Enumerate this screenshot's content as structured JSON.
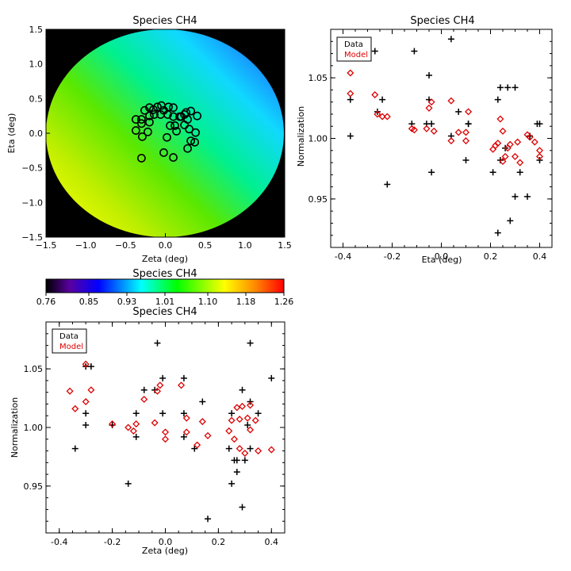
{
  "chart_data": [
    {
      "id": "map",
      "type": "heatmap",
      "title": "Species CH4",
      "xlabel": "Zeta (deg)",
      "ylabel": "Eta (deg)",
      "xlim": [
        -1.5,
        1.5
      ],
      "ylim": [
        -1.5,
        1.5
      ],
      "xticks": [
        -1.5,
        -1.0,
        -0.5,
        0.0,
        0.5,
        1.0,
        1.5
      ],
      "yticks": [
        -1.5,
        -1.0,
        -0.5,
        0.0,
        0.5,
        1.0,
        1.5
      ],
      "xtick_labels": [
        "−1.5",
        "−1.0",
        "−0.5",
        "0.0",
        "0.5",
        "1.0",
        "1.5"
      ],
      "ytick_labels": [
        "−1.5",
        "−1.0",
        "−0.5",
        "0.0",
        "0.5",
        "1.0",
        "1.5"
      ],
      "field_value_range": [
        0.85,
        1.18
      ],
      "points": [
        [
          -0.26,
          0.33
        ],
        [
          -0.2,
          0.37
        ],
        [
          -0.15,
          0.34
        ],
        [
          -0.1,
          0.38
        ],
        [
          -0.05,
          0.4
        ],
        [
          -0.02,
          0.33
        ],
        [
          0.04,
          0.38
        ],
        [
          0.1,
          0.37
        ],
        [
          0.26,
          0.3
        ],
        [
          0.32,
          0.32
        ],
        [
          -0.37,
          0.2
        ],
        [
          -0.3,
          0.2
        ],
        [
          -0.2,
          0.25
        ],
        [
          -0.14,
          0.27
        ],
        [
          -0.06,
          0.27
        ],
        [
          0.03,
          0.27
        ],
        [
          0.1,
          0.24
        ],
        [
          0.18,
          0.24
        ],
        [
          0.28,
          0.2
        ],
        [
          0.4,
          0.25
        ],
        [
          -0.3,
          0.14
        ],
        [
          -0.2,
          0.16
        ],
        [
          0.06,
          0.11
        ],
        [
          0.12,
          0.11
        ],
        [
          0.24,
          0.12
        ],
        [
          -0.37,
          0.04
        ],
        [
          -0.22,
          0.02
        ],
        [
          0.14,
          0.03
        ],
        [
          0.3,
          0.06
        ],
        [
          0.38,
          0.01
        ],
        [
          -0.29,
          -0.05
        ],
        [
          0.02,
          -0.06
        ],
        [
          0.32,
          -0.11
        ],
        [
          0.37,
          -0.13
        ],
        [
          0.28,
          -0.22
        ],
        [
          -0.02,
          -0.28
        ],
        [
          0.1,
          -0.35
        ],
        [
          -0.3,
          -0.36
        ],
        [
          0.24,
          0.27
        ],
        [
          0.2,
          0.24
        ]
      ]
    },
    {
      "id": "colorbar",
      "type": "heatmap",
      "title": "Species CH4",
      "vmin": 0.76,
      "vmax": 1.26,
      "ticks": [
        0.76,
        0.85,
        0.93,
        1.01,
        1.1,
        1.18,
        1.26
      ],
      "tick_labels": [
        "0.76",
        "0.85",
        "0.93",
        "1.01",
        "1.10",
        "1.18",
        "1.26"
      ]
    },
    {
      "id": "eta_plot",
      "type": "scatter",
      "title": "Species CH4",
      "xlabel": "Eta (deg)",
      "ylabel": "Normalization",
      "xlim": [
        -0.45,
        0.45
      ],
      "ylim": [
        0.91,
        1.09
      ],
      "xticks": [
        -0.4,
        -0.2,
        0.0,
        0.2,
        0.4
      ],
      "yticks": [
        0.95,
        1.0,
        1.05
      ],
      "xtick_labels": [
        "-0.4",
        "-0.2",
        "0.0",
        "0.2",
        "0.4"
      ],
      "ytick_labels": [
        "0.95",
        "1.00",
        "1.05"
      ],
      "legend": {
        "placement": "top-left",
        "entries": [
          "Data",
          "Model"
        ]
      },
      "series": [
        {
          "name": "Data",
          "marker": "plus",
          "color": "#000000",
          "points": [
            [
              -0.37,
              1.032
            ],
            [
              -0.37,
              1.002
            ],
            [
              -0.27,
              1.072
            ],
            [
              -0.26,
              1.022
            ],
            [
              -0.24,
              1.032
            ],
            [
              -0.22,
              0.962
            ],
            [
              -0.12,
              1.012
            ],
            [
              -0.11,
              1.072
            ],
            [
              -0.06,
              1.012
            ],
            [
              -0.05,
              1.052
            ],
            [
              -0.05,
              1.032
            ],
            [
              -0.04,
              1.012
            ],
            [
              -0.04,
              0.972
            ],
            [
              0.04,
              1.082
            ],
            [
              0.04,
              1.002
            ],
            [
              0.07,
              1.022
            ],
            [
              0.1,
              0.982
            ],
            [
              0.11,
              1.012
            ],
            [
              0.11,
              1.012
            ],
            [
              0.21,
              0.972
            ],
            [
              0.23,
              1.032
            ],
            [
              0.23,
              0.922
            ],
            [
              0.24,
              1.042
            ],
            [
              0.24,
              0.982
            ],
            [
              0.26,
              0.992
            ],
            [
              0.27,
              1.042
            ],
            [
              0.28,
              0.932
            ],
            [
              0.3,
              1.042
            ],
            [
              0.3,
              0.952
            ],
            [
              0.32,
              0.972
            ],
            [
              0.35,
              0.952
            ],
            [
              0.36,
              1.002
            ],
            [
              0.39,
              1.012
            ],
            [
              0.4,
              1.012
            ],
            [
              0.4,
              0.982
            ]
          ]
        },
        {
          "name": "Model",
          "marker": "diamond",
          "color": "#dd0000",
          "points": [
            [
              -0.37,
              1.054
            ],
            [
              -0.37,
              1.037
            ],
            [
              -0.27,
              1.036
            ],
            [
              -0.26,
              1.02
            ],
            [
              -0.24,
              1.018
            ],
            [
              -0.22,
              1.018
            ],
            [
              -0.12,
              1.008
            ],
            [
              -0.11,
              1.007
            ],
            [
              -0.06,
              1.008
            ],
            [
              -0.05,
              1.025
            ],
            [
              -0.04,
              1.03
            ],
            [
              -0.03,
              1.006
            ],
            [
              0.04,
              1.031
            ],
            [
              0.04,
              0.998
            ],
            [
              0.07,
              1.005
            ],
            [
              0.1,
              0.998
            ],
            [
              0.11,
              1.022
            ],
            [
              0.1,
              1.005
            ],
            [
              0.21,
              0.991
            ],
            [
              0.22,
              0.994
            ],
            [
              0.23,
              0.996
            ],
            [
              0.24,
              1.016
            ],
            [
              0.25,
              1.006
            ],
            [
              0.25,
              0.981
            ],
            [
              0.26,
              0.985
            ],
            [
              0.27,
              0.992
            ],
            [
              0.28,
              0.995
            ],
            [
              0.3,
              0.985
            ],
            [
              0.31,
              0.997
            ],
            [
              0.32,
              0.98
            ],
            [
              0.35,
              1.003
            ],
            [
              0.36,
              1.001
            ],
            [
              0.38,
              0.997
            ],
            [
              0.4,
              0.985
            ],
            [
              0.4,
              0.99
            ]
          ]
        }
      ]
    },
    {
      "id": "zeta_plot",
      "type": "scatter",
      "title": "Species CH4",
      "xlabel": "Zeta (deg)",
      "ylabel": "Normalization",
      "xlim": [
        -0.45,
        0.45
      ],
      "ylim": [
        0.91,
        1.09
      ],
      "xticks": [
        -0.4,
        -0.2,
        0.0,
        0.2,
        0.4
      ],
      "yticks": [
        0.95,
        1.0,
        1.05
      ],
      "xtick_labels": [
        "-0.4",
        "-0.2",
        "0.0",
        "0.2",
        "0.4"
      ],
      "ytick_labels": [
        "0.95",
        "1.00",
        "1.05"
      ],
      "legend": {
        "placement": "top-left",
        "entries": [
          "Data",
          "Model"
        ]
      },
      "series": [
        {
          "name": "Data",
          "marker": "plus",
          "color": "#000000",
          "points": [
            [
              -0.34,
              0.982
            ],
            [
              -0.3,
              1.052
            ],
            [
              -0.3,
              1.012
            ],
            [
              -0.3,
              1.002
            ],
            [
              -0.28,
              1.052
            ],
            [
              -0.2,
              1.002
            ],
            [
              -0.14,
              0.952
            ],
            [
              -0.11,
              1.012
            ],
            [
              -0.11,
              0.992
            ],
            [
              -0.08,
              1.032
            ],
            [
              -0.04,
              1.032
            ],
            [
              -0.03,
              1.072
            ],
            [
              -0.01,
              1.042
            ],
            [
              -0.01,
              1.012
            ],
            [
              0.07,
              1.042
            ],
            [
              0.07,
              1.012
            ],
            [
              0.07,
              0.992
            ],
            [
              0.11,
              0.982
            ],
            [
              0.14,
              1.022
            ],
            [
              0.16,
              0.922
            ],
            [
              0.24,
              0.982
            ],
            [
              0.25,
              1.012
            ],
            [
              0.25,
              0.952
            ],
            [
              0.26,
              0.972
            ],
            [
              0.27,
              0.962
            ],
            [
              0.27,
              0.972
            ],
            [
              0.29,
              1.032
            ],
            [
              0.29,
              0.932
            ],
            [
              0.3,
              0.972
            ],
            [
              0.31,
              1.002
            ],
            [
              0.32,
              1.022
            ],
            [
              0.32,
              1.072
            ],
            [
              0.35,
              1.012
            ],
            [
              0.4,
              1.042
            ],
            [
              0.32,
              0.982
            ]
          ]
        },
        {
          "name": "Model",
          "marker": "diamond",
          "color": "#dd0000",
          "points": [
            [
              -0.36,
              1.031
            ],
            [
              -0.34,
              1.016
            ],
            [
              -0.3,
              1.054
            ],
            [
              -0.3,
              1.022
            ],
            [
              -0.28,
              1.032
            ],
            [
              -0.2,
              1.003
            ],
            [
              -0.14,
              1.0
            ],
            [
              -0.12,
              0.997
            ],
            [
              -0.11,
              1.003
            ],
            [
              -0.08,
              1.024
            ],
            [
              -0.04,
              1.004
            ],
            [
              -0.03,
              1.031
            ],
            [
              -0.02,
              1.036
            ],
            [
              0.0,
              0.996
            ],
            [
              0.0,
              0.99
            ],
            [
              0.06,
              1.036
            ],
            [
              0.08,
              0.996
            ],
            [
              0.08,
              1.008
            ],
            [
              0.12,
              0.985
            ],
            [
              0.14,
              1.005
            ],
            [
              0.16,
              0.993
            ],
            [
              0.24,
              0.997
            ],
            [
              0.25,
              1.006
            ],
            [
              0.26,
              0.99
            ],
            [
              0.27,
              1.017
            ],
            [
              0.28,
              0.982
            ],
            [
              0.28,
              1.007
            ],
            [
              0.29,
              1.018
            ],
            [
              0.3,
              0.978
            ],
            [
              0.31,
              1.008
            ],
            [
              0.32,
              1.019
            ],
            [
              0.32,
              0.998
            ],
            [
              0.34,
              1.006
            ],
            [
              0.35,
              0.98
            ],
            [
              0.4,
              0.981
            ]
          ]
        }
      ]
    }
  ]
}
